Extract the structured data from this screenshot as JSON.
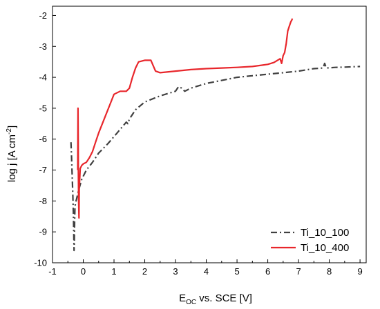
{
  "chart_data": {
    "type": "line",
    "xlabel": {
      "main": "E",
      "sub": "OC",
      "rest": " vs. SCE [V]"
    },
    "ylabel": {
      "main": "log j [A cm",
      "sup": "-2",
      "rest": "]"
    },
    "xlim": [
      -1,
      9.2
    ],
    "ylim": [
      -10,
      -1.7
    ],
    "xticks": [
      -1,
      0,
      1,
      2,
      3,
      4,
      5,
      6,
      7,
      8,
      9
    ],
    "yticks": [
      -10,
      -9,
      -8,
      -7,
      -6,
      -5,
      -4,
      -3,
      -2
    ],
    "grid": false,
    "legend_position": "bottom-right",
    "series": [
      {
        "name": "Ti_10_100",
        "color": "#404040",
        "style": "dash-dot",
        "points": [
          [
            -0.4,
            -6.1
          ],
          [
            -0.38,
            -6.6
          ],
          [
            -0.36,
            -7.2
          ],
          [
            -0.34,
            -7.8
          ],
          [
            -0.32,
            -8.5
          ],
          [
            -0.31,
            -9.0
          ],
          [
            -0.3,
            -9.6
          ],
          [
            -0.29,
            -9.3
          ],
          [
            -0.28,
            -8.7
          ],
          [
            -0.27,
            -8.2
          ],
          [
            -0.25,
            -8.05
          ],
          [
            -0.22,
            -7.95
          ],
          [
            -0.15,
            -7.65
          ],
          [
            -0.05,
            -7.3
          ],
          [
            0.1,
            -7.0
          ],
          [
            0.3,
            -6.75
          ],
          [
            0.5,
            -6.45
          ],
          [
            0.8,
            -6.15
          ],
          [
            1.1,
            -5.8
          ],
          [
            1.4,
            -5.45
          ],
          [
            1.45,
            -5.5
          ],
          [
            1.5,
            -5.35
          ],
          [
            1.7,
            -5.05
          ],
          [
            2.0,
            -4.8
          ],
          [
            2.5,
            -4.6
          ],
          [
            3.0,
            -4.45
          ],
          [
            3.1,
            -4.3
          ],
          [
            3.2,
            -4.35
          ],
          [
            3.3,
            -4.45
          ],
          [
            3.5,
            -4.35
          ],
          [
            4.0,
            -4.2
          ],
          [
            4.5,
            -4.1
          ],
          [
            5.0,
            -4.0
          ],
          [
            5.5,
            -3.95
          ],
          [
            6.0,
            -3.9
          ],
          [
            6.5,
            -3.85
          ],
          [
            7.0,
            -3.8
          ],
          [
            7.5,
            -3.72
          ],
          [
            7.8,
            -3.7
          ],
          [
            7.85,
            -3.55
          ],
          [
            7.9,
            -3.7
          ],
          [
            8.2,
            -3.68
          ],
          [
            8.5,
            -3.67
          ],
          [
            9.0,
            -3.65
          ]
        ]
      },
      {
        "name": "Ti_10_400",
        "color": "#e8262b",
        "style": "solid",
        "points": [
          [
            -0.18,
            -7.0
          ],
          [
            -0.17,
            -5.0
          ],
          [
            -0.165,
            -6.0
          ],
          [
            -0.16,
            -7.0
          ],
          [
            -0.15,
            -8.0
          ],
          [
            -0.14,
            -8.55
          ],
          [
            -0.13,
            -7.6
          ],
          [
            -0.1,
            -6.95
          ],
          [
            -0.05,
            -6.85
          ],
          [
            0.0,
            -6.8
          ],
          [
            0.1,
            -6.75
          ],
          [
            0.2,
            -6.6
          ],
          [
            0.3,
            -6.4
          ],
          [
            0.4,
            -6.1
          ],
          [
            0.5,
            -5.8
          ],
          [
            0.7,
            -5.3
          ],
          [
            0.9,
            -4.8
          ],
          [
            1.0,
            -4.55
          ],
          [
            1.2,
            -4.45
          ],
          [
            1.4,
            -4.45
          ],
          [
            1.5,
            -4.35
          ],
          [
            1.6,
            -4.0
          ],
          [
            1.7,
            -3.7
          ],
          [
            1.8,
            -3.5
          ],
          [
            2.0,
            -3.45
          ],
          [
            2.2,
            -3.45
          ],
          [
            2.35,
            -3.8
          ],
          [
            2.5,
            -3.85
          ],
          [
            3.0,
            -3.8
          ],
          [
            3.5,
            -3.75
          ],
          [
            4.0,
            -3.72
          ],
          [
            4.5,
            -3.7
          ],
          [
            5.0,
            -3.68
          ],
          [
            5.5,
            -3.65
          ],
          [
            6.0,
            -3.58
          ],
          [
            6.2,
            -3.52
          ],
          [
            6.4,
            -3.4
          ],
          [
            6.45,
            -3.55
          ],
          [
            6.5,
            -3.3
          ],
          [
            6.55,
            -3.2
          ],
          [
            6.6,
            -2.9
          ],
          [
            6.65,
            -2.5
          ],
          [
            6.7,
            -2.35
          ],
          [
            6.75,
            -2.2
          ],
          [
            6.78,
            -2.15
          ],
          [
            6.8,
            -2.1
          ]
        ]
      }
    ]
  }
}
